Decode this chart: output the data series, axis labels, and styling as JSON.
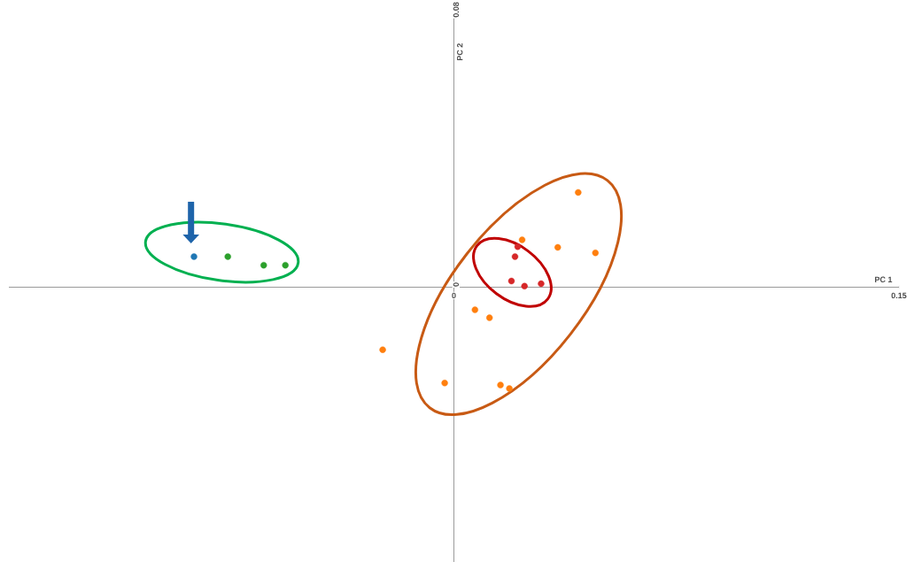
{
  "chart_data": {
    "type": "scatter",
    "xlabel": "PC 1",
    "ylabel": "PC 2",
    "xlim": [
      -0.15,
      0.15
    ],
    "ylim": [
      -0.08,
      0.08
    ],
    "xticks": [
      0,
      0.15
    ],
    "yticks": [
      0,
      0.08
    ],
    "grid": false,
    "marker": "circle",
    "series": [
      {
        "color": "#1f77b4",
        "x": [
          -0.0876
        ],
        "values": [
          0.0089
        ]
      },
      {
        "color": "#2ca02c",
        "x": [
          -0.0762,
          -0.0641,
          -0.0568
        ],
        "values": [
          0.0089,
          0.0064,
          0.0064
        ]
      },
      {
        "color": "#d62728",
        "x": [
          0.0215,
          0.0206,
          0.0194,
          0.0238,
          0.0294
        ],
        "values": [
          0.0118,
          0.0089,
          0.0018,
          0.0003,
          0.001
        ]
      },
      {
        "color": "#ff7f0e",
        "x": [
          0.023,
          0.0419,
          0.035,
          0.0477,
          0.0071,
          0.012,
          -0.024,
          -0.0031,
          0.0157,
          0.0187
        ],
        "values": [
          0.0138,
          0.0276,
          0.0116,
          0.01,
          -0.0066,
          -0.0089,
          -0.0182,
          -0.0279,
          -0.0285,
          -0.0295
        ]
      }
    ]
  }
}
